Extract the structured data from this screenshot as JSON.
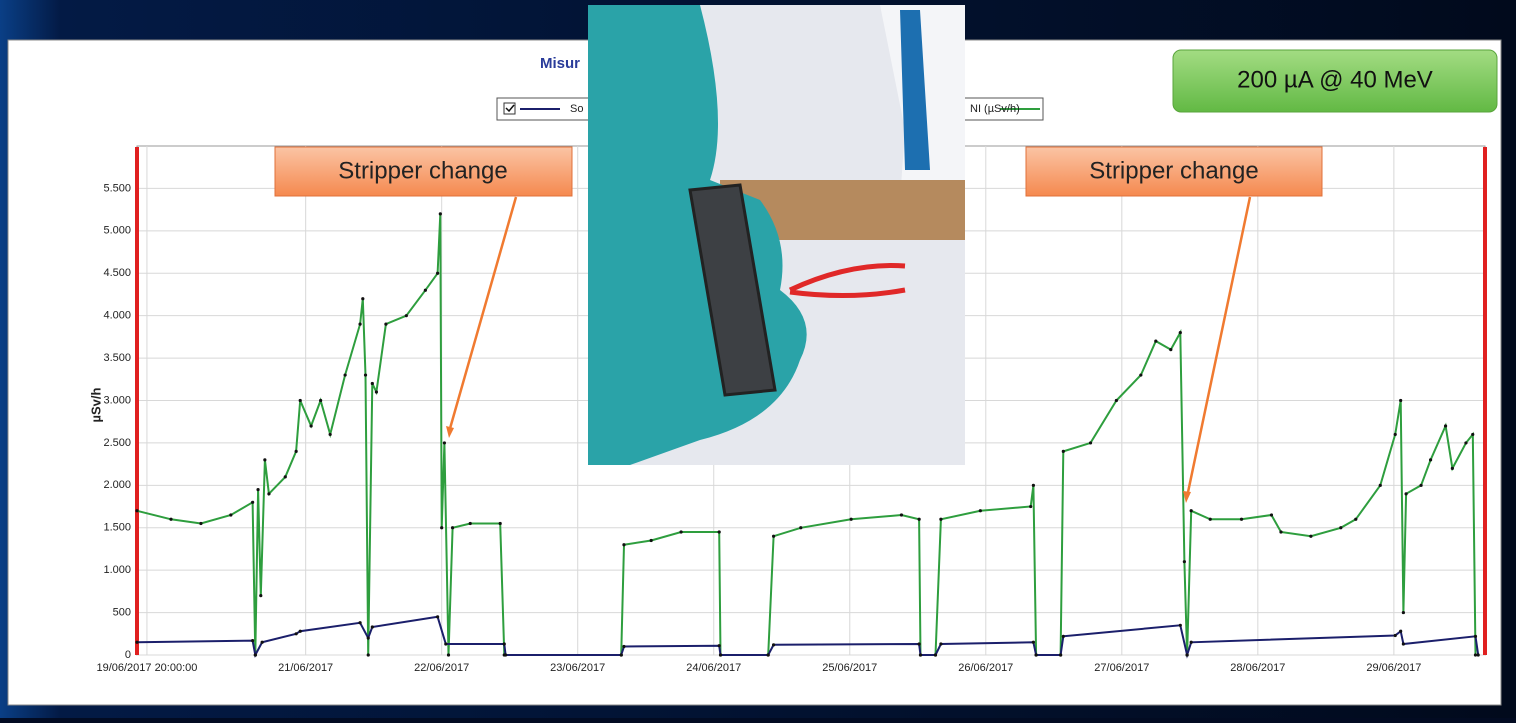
{
  "chart_data": {
    "type": "line",
    "title": "Misur",
    "y_label": "µSv/h",
    "annotations": [
      "Stripper change",
      "Stripper change",
      "200 µA @ 40 MeV"
    ],
    "xlim": [
      19.76,
      29.67
    ],
    "xticks": [
      {
        "value": 19.833,
        "label": "19/06/2017 20:00:00"
      },
      {
        "value": 21,
        "label": "21/06/2017"
      },
      {
        "value": 22,
        "label": "22/06/2017"
      },
      {
        "value": 23,
        "label": "23/06/2017"
      },
      {
        "value": 24,
        "label": "24/06/2017"
      },
      {
        "value": 25,
        "label": "25/06/2017"
      },
      {
        "value": 26,
        "label": "26/06/2017"
      },
      {
        "value": 27,
        "label": "27/06/2017"
      },
      {
        "value": 28,
        "label": "28/06/2017"
      },
      {
        "value": 29,
        "label": "29/06/2017"
      }
    ],
    "ylim": [
      0,
      6000
    ],
    "yticks": [
      0,
      500,
      {
        "value": 1000,
        "label": "1.000"
      },
      {
        "value": 1500,
        "label": "1.500"
      },
      {
        "value": 2000,
        "label": "2.000"
      },
      {
        "value": 2500,
        "label": "2.500"
      },
      {
        "value": 3000,
        "label": "3.000"
      },
      {
        "value": 3500,
        "label": "3.500"
      },
      {
        "value": 4000,
        "label": "4.000"
      },
      {
        "value": 4500,
        "label": "4.500"
      },
      {
        "value": 5000,
        "label": "5.000"
      },
      {
        "value": 5500,
        "label": "5.500"
      }
    ],
    "grid": true,
    "series": [
      {
        "name": "So",
        "color": "#1b1f6b",
        "x": [
          19.76,
          20.61,
          20.63,
          20.68,
          20.93,
          20.96,
          21.4,
          21.46,
          21.49,
          21.97,
          22.03,
          22.46,
          22.47,
          23.32,
          23.34,
          24.04,
          24.05,
          24.4,
          24.44,
          25.51,
          25.52,
          25.63,
          25.67,
          26.35,
          26.37,
          26.55,
          26.57,
          27.43,
          27.48,
          27.51,
          29.01,
          29.05,
          29.07,
          29.6,
          29.62
        ],
        "values": [
          150,
          170,
          0,
          150,
          250,
          280,
          380,
          200,
          330,
          450,
          130,
          130,
          0,
          0,
          100,
          110,
          0,
          0,
          120,
          130,
          0,
          0,
          130,
          150,
          0,
          0,
          220,
          350,
          0,
          150,
          230,
          280,
          130,
          220,
          0
        ]
      },
      {
        "name": "NI (µSv/h)",
        "color": "#2e9e3e",
        "x": [
          19.76,
          20.01,
          20.23,
          20.45,
          20.61,
          20.63,
          20.65,
          20.67,
          20.7,
          20.73,
          20.85,
          20.93,
          20.96,
          21.04,
          21.11,
          21.18,
          21.29,
          21.4,
          21.42,
          21.44,
          21.46,
          21.49,
          21.52,
          21.59,
          21.74,
          21.88,
          21.97,
          21.99,
          22.0,
          22.02,
          22.05,
          22.08,
          22.21,
          22.43,
          22.46,
          23.32,
          23.34,
          23.54,
          23.76,
          24.04,
          24.05,
          24.4,
          24.44,
          24.64,
          25.01,
          25.38,
          25.51,
          25.52,
          25.63,
          25.67,
          25.96,
          26.33,
          26.35,
          26.37,
          26.55,
          26.57,
          26.77,
          26.96,
          27.14,
          27.25,
          27.36,
          27.43,
          27.46,
          27.48,
          27.51,
          27.65,
          27.88,
          28.1,
          28.17,
          28.39,
          28.61,
          28.72,
          28.9,
          29.01,
          29.05,
          29.07,
          29.09,
          29.2,
          29.27,
          29.38,
          29.43,
          29.53,
          29.58,
          29.6
        ],
        "values": [
          1700,
          1600,
          1550,
          1650,
          1800,
          0,
          1950,
          700,
          2300,
          1900,
          2100,
          2400,
          3000,
          2700,
          3000,
          2600,
          3300,
          3900,
          4200,
          3300,
          0,
          3200,
          3100,
          3900,
          4000,
          4300,
          4500,
          5200,
          1500,
          2500,
          0,
          1500,
          1550,
          1550,
          0,
          0,
          1300,
          1350,
          1450,
          1450,
          0,
          0,
          1400,
          1500,
          1600,
          1650,
          1600,
          0,
          0,
          1600,
          1700,
          1750,
          2000,
          0,
          0,
          2400,
          2500,
          3000,
          3300,
          3700,
          3600,
          3800,
          1100,
          0,
          1700,
          1600,
          1600,
          1650,
          1450,
          1400,
          1500,
          1600,
          2000,
          2600,
          3000,
          500,
          1900,
          2000,
          2300,
          2700,
          2200,
          2500,
          2600,
          0
        ]
      }
    ]
  }
}
